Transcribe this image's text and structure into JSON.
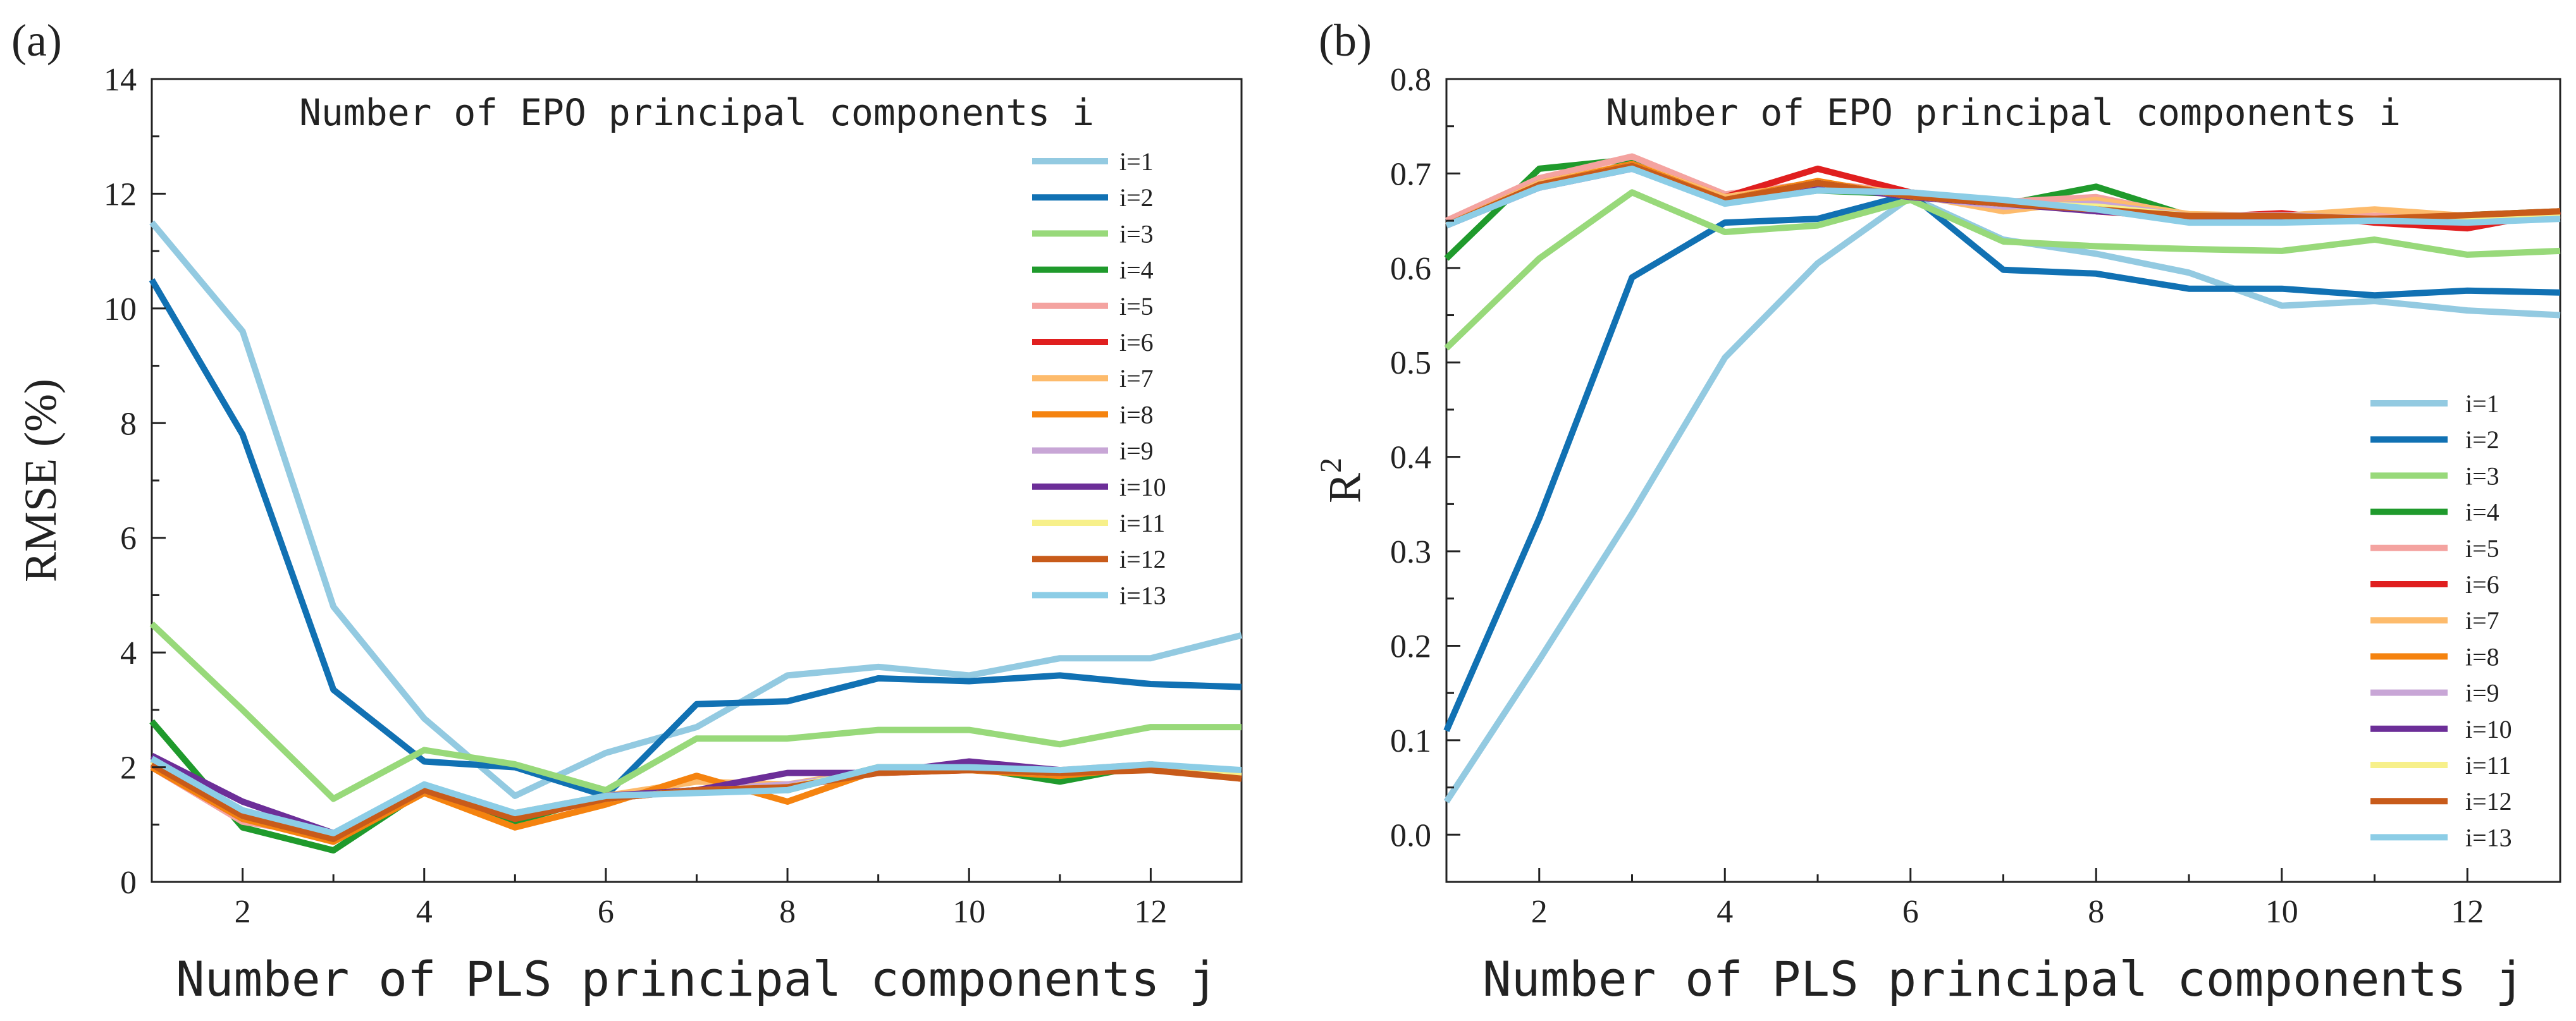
{
  "chart_data": [
    {
      "type": "line",
      "panel_label": "(a)",
      "title": "Number of EPO principal components i",
      "xlabel": "Number of PLS principal components j",
      "ylabel": "RMSE (%)",
      "xlim": [
        1,
        13
      ],
      "ylim": [
        0,
        14
      ],
      "xticks": [
        "2",
        "4",
        "6",
        "8",
        "10",
        "12"
      ],
      "yticks": [
        "0",
        "2",
        "4",
        "6",
        "8",
        "10",
        "12",
        "14"
      ],
      "legend_position": "top-right",
      "x": [
        1,
        2,
        3,
        4,
        5,
        6,
        7,
        8,
        9,
        10,
        11,
        12,
        13
      ],
      "series": [
        {
          "name": "i=1",
          "color": "#93cae1",
          "values": [
            11.5,
            9.6,
            4.8,
            2.85,
            1.5,
            2.25,
            2.7,
            3.6,
            3.75,
            3.6,
            3.9,
            3.9,
            4.3
          ]
        },
        {
          "name": "i=2",
          "color": "#1171b3",
          "values": [
            10.5,
            7.8,
            3.35,
            2.1,
            2.0,
            1.5,
            3.1,
            3.15,
            3.55,
            3.5,
            3.6,
            3.45,
            3.4
          ]
        },
        {
          "name": "i=3",
          "color": "#98d97a",
          "values": [
            4.5,
            3.0,
            1.45,
            2.3,
            2.05,
            1.6,
            2.5,
            2.5,
            2.65,
            2.65,
            2.4,
            2.7,
            2.7
          ]
        },
        {
          "name": "i=4",
          "color": "#1f9a2c",
          "values": [
            2.8,
            0.95,
            0.55,
            1.6,
            1.05,
            1.5,
            1.6,
            1.6,
            2.0,
            2.0,
            1.75,
            2.05,
            1.85
          ]
        },
        {
          "name": "i=5",
          "color": "#f4a3a0",
          "values": [
            2.0,
            1.05,
            0.8,
            1.55,
            1.15,
            1.45,
            1.6,
            1.65,
            1.95,
            1.95,
            1.95,
            2.05,
            1.85
          ]
        },
        {
          "name": "i=6",
          "color": "#e01f1f",
          "values": [
            2.0,
            1.1,
            0.75,
            1.6,
            1.1,
            1.45,
            1.6,
            1.65,
            1.9,
            1.95,
            1.9,
            2.0,
            1.8
          ]
        },
        {
          "name": "i=7",
          "color": "#fdbb6c",
          "values": [
            2.05,
            1.2,
            0.8,
            1.6,
            1.2,
            1.5,
            1.75,
            1.7,
            1.95,
            1.95,
            1.9,
            2.0,
            1.85
          ]
        },
        {
          "name": "i=8",
          "color": "#f5830f",
          "values": [
            2.0,
            1.1,
            0.7,
            1.55,
            0.95,
            1.35,
            1.85,
            1.4,
            1.95,
            1.95,
            1.85,
            2.0,
            1.8
          ]
        },
        {
          "name": "i=9",
          "color": "#c8a6d6",
          "values": [
            2.1,
            1.2,
            0.8,
            1.6,
            1.15,
            1.45,
            1.6,
            1.7,
            1.9,
            2.0,
            1.9,
            2.0,
            1.85
          ]
        },
        {
          "name": "i=10",
          "color": "#6c2e98",
          "values": [
            2.2,
            1.4,
            0.85,
            1.65,
            1.1,
            1.5,
            1.6,
            1.9,
            1.9,
            2.1,
            1.95,
            2.0,
            1.85
          ]
        },
        {
          "name": "i=11",
          "color": "#f7f08a",
          "values": [
            2.1,
            1.15,
            0.8,
            1.6,
            1.15,
            1.45,
            1.6,
            1.65,
            1.95,
            1.95,
            1.9,
            2.0,
            1.85
          ]
        },
        {
          "name": "i=12",
          "color": "#c85b1a",
          "values": [
            2.05,
            1.15,
            0.75,
            1.6,
            1.1,
            1.45,
            1.6,
            1.65,
            1.9,
            1.95,
            1.9,
            1.95,
            1.8
          ]
        },
        {
          "name": "i=13",
          "color": "#8ccde6",
          "values": [
            2.15,
            1.25,
            0.85,
            1.7,
            1.2,
            1.5,
            1.55,
            1.6,
            2.0,
            2.0,
            1.95,
            2.05,
            1.95
          ]
        }
      ]
    },
    {
      "type": "line",
      "panel_label": "(b)",
      "title": "Number of EPO principal components i",
      "xlabel": "Number of PLS principal components j",
      "ylabel": "R",
      "ylabel_superscript": "2",
      "xlim": [
        1,
        13
      ],
      "ylim": [
        -0.05,
        0.8
      ],
      "xticks": [
        "2",
        "4",
        "6",
        "8",
        "10",
        "12"
      ],
      "yticks": [
        "0.0",
        "0.1",
        "0.2",
        "0.3",
        "0.4",
        "0.5",
        "0.6",
        "0.7",
        "0.8"
      ],
      "legend_position": "bottom-right",
      "x": [
        1,
        2,
        3,
        4,
        5,
        6,
        7,
        8,
        9,
        10,
        11,
        12,
        13
      ],
      "series": [
        {
          "name": "i=1",
          "color": "#93cae1",
          "values": [
            0.035,
            0.185,
            0.34,
            0.505,
            0.605,
            0.675,
            0.63,
            0.615,
            0.595,
            0.56,
            0.565,
            0.555,
            0.55
          ]
        },
        {
          "name": "i=2",
          "color": "#1171b3",
          "values": [
            0.11,
            0.335,
            0.59,
            0.648,
            0.652,
            0.678,
            0.598,
            0.594,
            0.578,
            0.578,
            0.571,
            0.576,
            0.574
          ]
        },
        {
          "name": "i=3",
          "color": "#98d97a",
          "values": [
            0.515,
            0.61,
            0.68,
            0.638,
            0.645,
            0.672,
            0.628,
            0.623,
            0.62,
            0.618,
            0.63,
            0.614,
            0.618
          ]
        },
        {
          "name": "i=4",
          "color": "#1f9a2c",
          "values": [
            0.61,
            0.705,
            0.715,
            0.67,
            0.682,
            0.678,
            0.667,
            0.686,
            0.655,
            0.654,
            0.652,
            0.656,
            0.66
          ]
        },
        {
          "name": "i=5",
          "color": "#f4a3a0",
          "values": [
            0.65,
            0.695,
            0.718,
            0.678,
            0.69,
            0.68,
            0.67,
            0.675,
            0.655,
            0.655,
            0.655,
            0.655,
            0.66
          ]
        },
        {
          "name": "i=6",
          "color": "#e01f1f",
          "values": [
            0.645,
            0.69,
            0.71,
            0.675,
            0.705,
            0.68,
            0.67,
            0.66,
            0.653,
            0.658,
            0.648,
            0.642,
            0.66
          ]
        },
        {
          "name": "i=7",
          "color": "#fdbb6c",
          "values": [
            0.645,
            0.69,
            0.71,
            0.675,
            0.69,
            0.678,
            0.66,
            0.672,
            0.657,
            0.655,
            0.662,
            0.655,
            0.658
          ]
        },
        {
          "name": "i=8",
          "color": "#f5830f",
          "values": [
            0.645,
            0.688,
            0.71,
            0.672,
            0.692,
            0.675,
            0.668,
            0.665,
            0.655,
            0.655,
            0.652,
            0.655,
            0.66
          ]
        },
        {
          "name": "i=9",
          "color": "#c8a6d6",
          "values": [
            0.645,
            0.688,
            0.708,
            0.672,
            0.69,
            0.676,
            0.665,
            0.668,
            0.655,
            0.656,
            0.652,
            0.65,
            0.655
          ]
        },
        {
          "name": "i=10",
          "color": "#6c2e98",
          "values": [
            0.645,
            0.685,
            0.705,
            0.67,
            0.688,
            0.675,
            0.668,
            0.66,
            0.655,
            0.652,
            0.652,
            0.652,
            0.655
          ]
        },
        {
          "name": "i=11",
          "color": "#f7f08a",
          "values": [
            0.645,
            0.688,
            0.708,
            0.672,
            0.69,
            0.676,
            0.668,
            0.665,
            0.655,
            0.655,
            0.652,
            0.652,
            0.656
          ]
        },
        {
          "name": "i=12",
          "color": "#c85b1a",
          "values": [
            0.645,
            0.688,
            0.708,
            0.672,
            0.69,
            0.676,
            0.668,
            0.662,
            0.655,
            0.655,
            0.652,
            0.656,
            0.66
          ]
        },
        {
          "name": "i=13",
          "color": "#8ccde6",
          "values": [
            0.645,
            0.685,
            0.705,
            0.668,
            0.682,
            0.68,
            0.672,
            0.662,
            0.648,
            0.648,
            0.65,
            0.648,
            0.652
          ]
        }
      ]
    }
  ]
}
